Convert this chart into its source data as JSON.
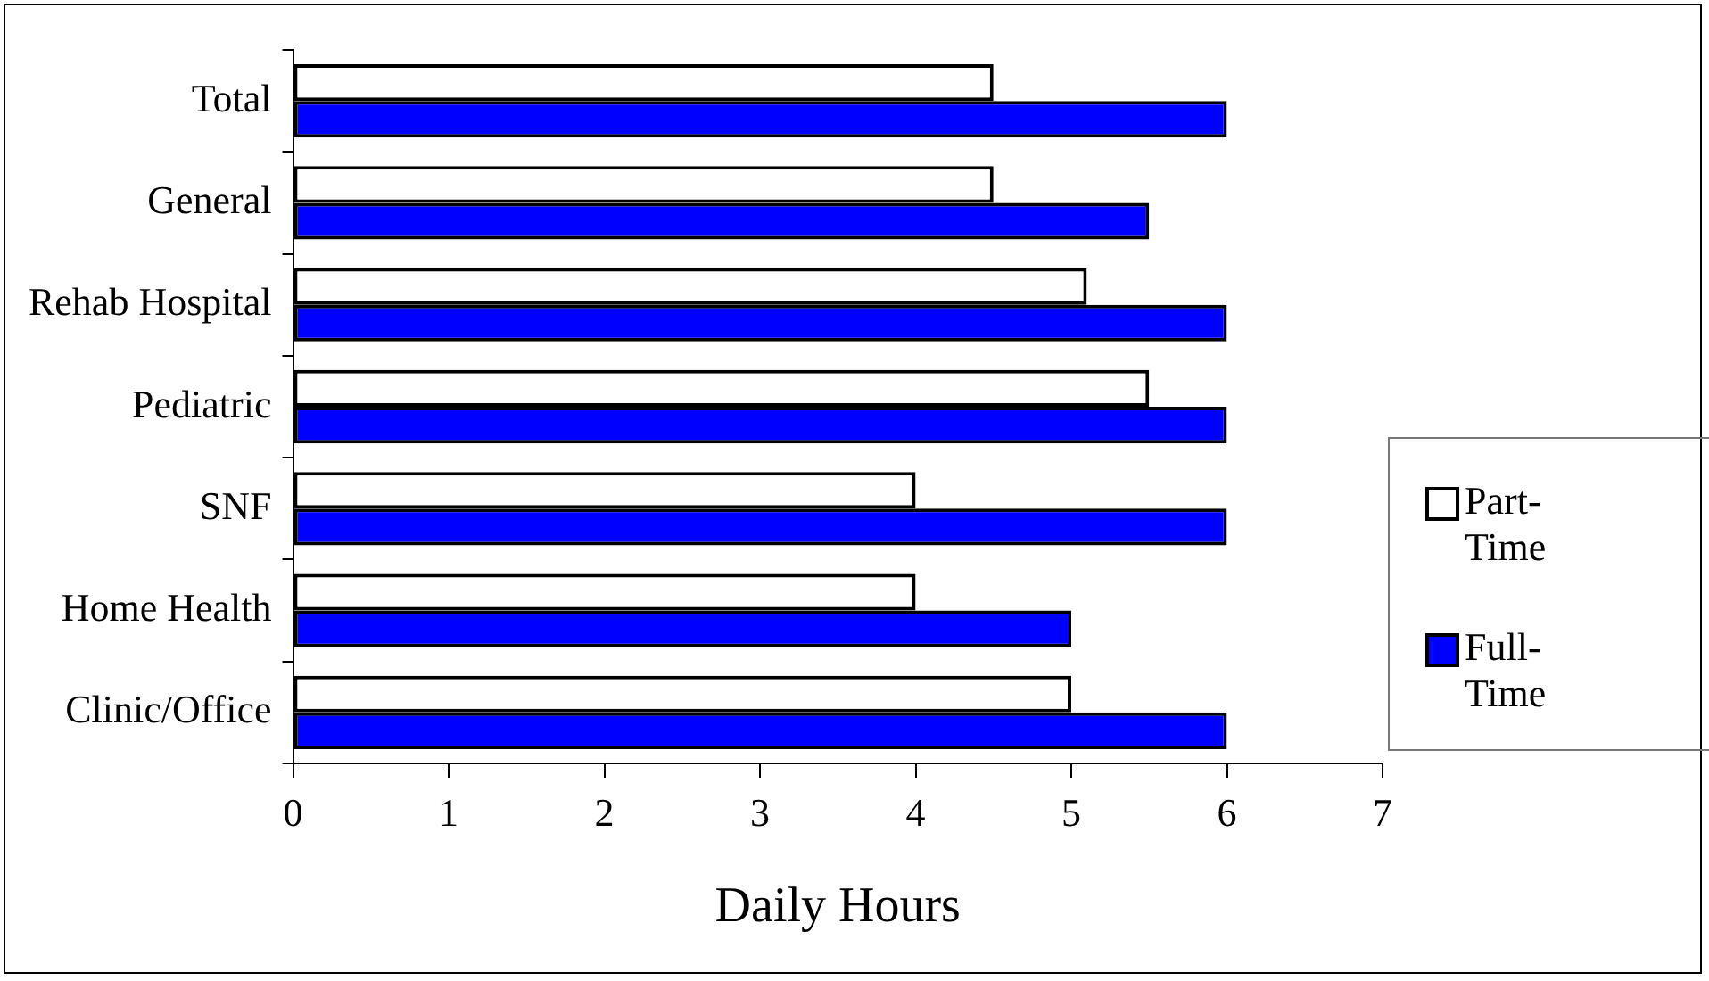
{
  "chart_data": {
    "type": "bar",
    "orientation": "horizontal",
    "xlabel": "Daily Hours",
    "categories": [
      "Total",
      "General",
      "Rehab Hospital",
      "Pediatric",
      "SNF",
      "Home Health",
      "Clinic/Office"
    ],
    "series": [
      {
        "name": "Part-Time",
        "color": "#ffffff",
        "values": [
          4.5,
          4.5,
          5.1,
          5.5,
          4,
          4,
          5
        ]
      },
      {
        "name": "Full-Time",
        "color": "#0000ff",
        "values": [
          6,
          5.5,
          6,
          6,
          6,
          5,
          6
        ]
      }
    ],
    "xlim": [
      0,
      7
    ],
    "xticks": [
      0,
      1,
      2,
      3,
      4,
      5,
      6,
      7
    ],
    "grid": false,
    "legend": "right"
  }
}
